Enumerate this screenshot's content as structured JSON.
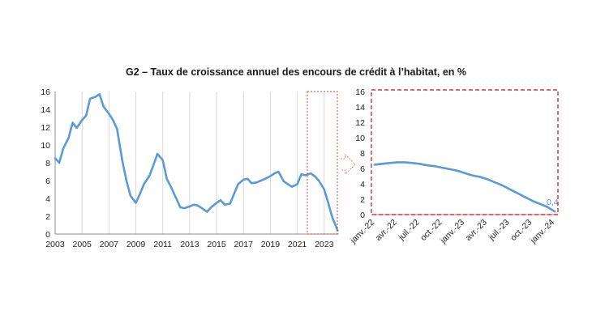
{
  "title": "G2 – Taux de croissance annuel des encours de crédit à l’habitat, en %",
  "colors": {
    "line": "#5b9bd5",
    "highlight": "#e03030",
    "grid": "#d9d9d9",
    "axis": "#8c8c8c"
  },
  "chart_data": [
    {
      "type": "line",
      "title": "",
      "xlabel": "",
      "ylabel": "",
      "xlim": [
        2003,
        2024.1
      ],
      "ylim": [
        0,
        16
      ],
      "yticks": [
        0,
        2,
        4,
        6,
        8,
        10,
        12,
        14,
        16
      ],
      "xticks": [
        2003,
        2005,
        2007,
        2009,
        2011,
        2013,
        2015,
        2017,
        2019,
        2021,
        2023
      ],
      "grid": "vertical",
      "x": [
        2003.0,
        2003.3,
        2003.6,
        2004.0,
        2004.3,
        2004.6,
        2005.0,
        2005.3,
        2005.6,
        2006.0,
        2006.3,
        2006.6,
        2007.0,
        2007.3,
        2007.6,
        2008.0,
        2008.3,
        2008.6,
        2009.0,
        2009.3,
        2009.6,
        2010.0,
        2010.3,
        2010.6,
        2011.0,
        2011.3,
        2011.6,
        2012.0,
        2012.3,
        2012.6,
        2013.0,
        2013.3,
        2013.6,
        2014.0,
        2014.3,
        2014.6,
        2015.0,
        2015.3,
        2015.6,
        2016.0,
        2016.3,
        2016.6,
        2017.0,
        2017.3,
        2017.6,
        2018.0,
        2018.3,
        2018.6,
        2019.0,
        2019.3,
        2019.6,
        2020.0,
        2020.3,
        2020.6,
        2021.0,
        2021.3,
        2021.6,
        2022.0,
        2022.3,
        2022.6,
        2023.0,
        2023.3,
        2023.6,
        2024.0
      ],
      "values": [
        8.5,
        8.0,
        9.6,
        10.8,
        12.5,
        11.9,
        12.8,
        13.3,
        15.2,
        15.4,
        15.7,
        14.3,
        13.5,
        12.8,
        11.8,
        8.2,
        6.0,
        4.3,
        3.5,
        4.5,
        5.6,
        6.5,
        7.7,
        9.0,
        8.3,
        6.2,
        5.3,
        4.0,
        3.0,
        2.9,
        3.1,
        3.3,
        3.2,
        2.8,
        2.5,
        3.0,
        3.5,
        3.8,
        3.3,
        3.4,
        4.5,
        5.6,
        6.1,
        6.2,
        5.7,
        5.8,
        6.0,
        6.2,
        6.5,
        6.8,
        7.0,
        5.9,
        5.6,
        5.3,
        5.6,
        6.7,
        6.6,
        6.8,
        6.5,
        6.0,
        5.0,
        3.5,
        1.9,
        0.4
      ]
    },
    {
      "type": "line",
      "title": "",
      "xlabel": "",
      "ylabel": "",
      "ylim": [
        0,
        16
      ],
      "yticks": [
        0,
        2,
        4,
        6,
        8,
        10,
        12,
        14,
        16
      ],
      "categories": [
        "janv.-22",
        "févr.-22",
        "mars-22",
        "avr.-22",
        "mai-22",
        "juin-22",
        "juil.-22",
        "août-22",
        "sept.-22",
        "oct.-22",
        "nov.-22",
        "déc.-22",
        "janv.-23",
        "févr.-23",
        "mars-23",
        "avr.-23",
        "mai-23",
        "juin-23",
        "juil.-23",
        "août-23",
        "sept.-23",
        "oct.-23",
        "nov.-23",
        "déc.-23",
        "janv.-24"
      ],
      "xtick_labels": [
        "janv.-22",
        "avr.-22",
        "juil.-22",
        "oct.-22",
        "janv.-23",
        "avr.-23",
        "juil.-23",
        "oct.-23",
        "janv.-24"
      ],
      "values": [
        6.5,
        6.6,
        6.7,
        6.8,
        6.8,
        6.7,
        6.6,
        6.4,
        6.3,
        6.1,
        5.9,
        5.7,
        5.4,
        5.1,
        4.9,
        4.6,
        4.2,
        3.8,
        3.3,
        2.8,
        2.3,
        1.8,
        1.4,
        1.0,
        0.4
      ],
      "data_label": "0,4",
      "grid": "none"
    }
  ]
}
